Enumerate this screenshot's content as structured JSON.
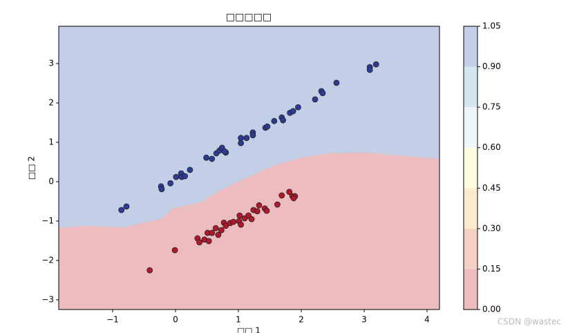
{
  "chart_data": {
    "type": "contour-scatter",
    "title": "□□□□□",
    "xlabel": "□□ 1",
    "ylabel": "□□ 2",
    "xlim": [
      -1.857,
      4.198
    ],
    "ylim": [
      -3.246,
      3.947
    ],
    "xticks": [
      {
        "value": -1,
        "label": "−1"
      },
      0,
      1,
      2,
      3,
      4
    ],
    "yticks": [
      {
        "value": -3,
        "label": "−3"
      },
      {
        "value": -2,
        "label": "−2"
      },
      {
        "value": -1,
        "label": "−1"
      },
      0,
      1,
      2,
      3
    ],
    "boundary": {
      "x": [
        -1.857,
        -1.47,
        -0.81,
        -0.21,
        -0.04,
        0.4,
        0.73,
        1.0,
        1.55,
        2.04,
        2.48,
        3.0,
        4.198
      ],
      "y": [
        -1.18,
        -1.12,
        -1.16,
        -0.93,
        -0.68,
        -0.53,
        -0.21,
        0.0,
        0.4,
        0.63,
        0.72,
        0.74,
        0.58
      ]
    },
    "series": [
      {
        "color": "#2c3c94",
        "x": [
          -0.86,
          -0.78,
          -0.23,
          -0.22,
          -0.08,
          0.01,
          0.09,
          0.1,
          0.15,
          0.23,
          0.49,
          0.58,
          0.65,
          0.7,
          0.74,
          0.8,
          0.78,
          1.04,
          1.04,
          1.13,
          1.23,
          1.23,
          1.43,
          1.46,
          1.57,
          1.69,
          1.71,
          1.82,
          1.87,
          1.95,
          2.22,
          2.32,
          2.34,
          2.56,
          3.09,
          3.09,
          3.19
        ],
        "values": [
          -0.72,
          -0.63,
          -0.12,
          -0.19,
          -0.04,
          0.12,
          0.21,
          0.12,
          0.14,
          0.3,
          0.61,
          0.58,
          0.72,
          0.79,
          0.86,
          0.74,
          0.77,
          1.11,
          0.98,
          1.11,
          1.25,
          1.18,
          1.37,
          1.4,
          1.54,
          1.63,
          1.56,
          1.75,
          1.79,
          1.89,
          2.09,
          2.3,
          2.25,
          2.51,
          2.91,
          2.84,
          2.98
        ]
      },
      {
        "color": "#b2182b",
        "x": [
          -0.41,
          -0.01,
          0.35,
          0.38,
          0.46,
          0.51,
          0.53,
          0.58,
          0.64,
          0.68,
          0.73,
          0.77,
          0.8,
          0.87,
          0.92,
          1.01,
          1.02,
          1.04,
          1.1,
          1.16,
          1.21,
          1.24,
          1.3,
          1.33,
          1.42,
          1.45,
          1.62,
          1.69,
          1.81,
          1.86,
          1.9,
          1.88
        ],
        "values": [
          -2.25,
          -1.74,
          -1.44,
          -1.54,
          -1.47,
          -1.3,
          -1.51,
          -1.3,
          -1.18,
          -1.35,
          -1.23,
          -1.04,
          -1.12,
          -1.05,
          -1.02,
          -1.0,
          -0.86,
          -1.09,
          -0.93,
          -0.86,
          -0.95,
          -0.72,
          -0.75,
          -0.6,
          -0.68,
          -0.74,
          -0.58,
          -0.35,
          -0.26,
          -0.37,
          -0.37,
          -0.42
        ]
      }
    ],
    "colorbar": {
      "lim": [
        0,
        1.05
      ],
      "ticks": [
        {
          "value": 0,
          "label": "0.00"
        },
        {
          "value": 0.15,
          "label": "0.15"
        },
        {
          "value": 0.3,
          "label": "0.30"
        },
        {
          "value": 0.45,
          "label": "0.45"
        },
        {
          "value": 0.6,
          "label": "0.60"
        },
        {
          "value": 0.75,
          "label": "0.75"
        },
        {
          "value": 0.9,
          "label": "0.90"
        },
        {
          "value": 1.05,
          "label": "1.05"
        }
      ],
      "colors": [
        "#ecbcbe",
        "#f6d2c4",
        "#fbecd0",
        "#fdfde0",
        "#eef6f8",
        "#d5e6ef",
        "#c3cfe6"
      ]
    },
    "watermark": "CSDN @wastec"
  }
}
